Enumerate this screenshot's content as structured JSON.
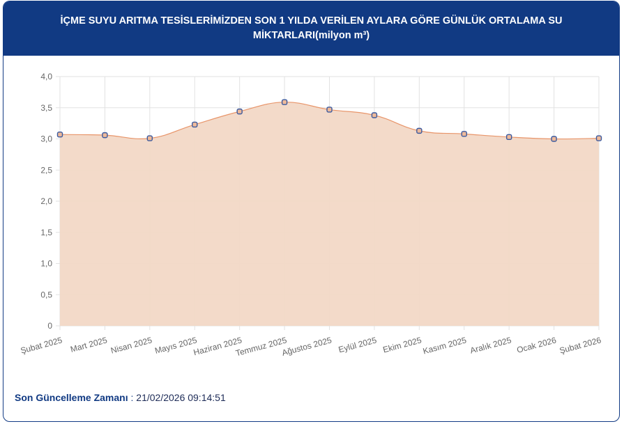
{
  "header": {
    "title": "İÇME SUYU ARITMA TESİSLERİMİZDEN SON 1 YILDA VERİLEN AYLARA GÖRE GÜNLÜK ORTALAMA SU MİKTARLARI(milyon m³)"
  },
  "footer": {
    "label": "Son Güncelleme Zamanı",
    "separator": " : ",
    "value": "21/02/2026 09:14:51"
  },
  "chart_data": {
    "type": "area",
    "title": "İÇME SUYU ARITMA TESİSLERİMİZDEN SON 1 YILDA VERİLEN AYLARA GÖRE GÜNLÜK ORTALAMA SU MİKTARLARI(milyon m³)",
    "categories": [
      "Şubat 2025",
      "Mart 2025",
      "Nisan 2025",
      "Mayıs 2025",
      "Haziran 2025",
      "Temmuz 2025",
      "Ağustos 2025",
      "Eylül 2025",
      "Ekim 2025",
      "Kasım 2025",
      "Aralık 2025",
      "Ocak 2026",
      "Şubat 2026"
    ],
    "values": [
      3.07,
      3.06,
      3.01,
      3.23,
      3.44,
      3.59,
      3.47,
      3.38,
      3.13,
      3.08,
      3.03,
      3.0,
      3.01
    ],
    "ylim": [
      0,
      4
    ],
    "yticks": [
      "0",
      "0,5",
      "1,0",
      "1,5",
      "2,0",
      "2,5",
      "3,0",
      "3,5",
      "4,0"
    ],
    "grid": true,
    "colors": {
      "line": "#e8956a",
      "fill": "#f2d8c6",
      "point": "#3a5aa0",
      "header": "#113a83"
    }
  }
}
